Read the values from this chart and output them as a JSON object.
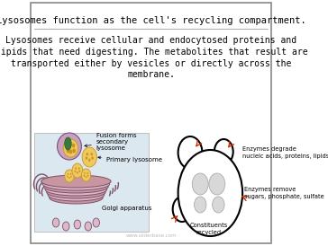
{
  "title": "Lysosomes function as the cell's recycling compartment.",
  "body_text": "Lysosomes receive cellular and endocytosed proteins and\nlipids that need digesting. The metabolites that result are\ntransported either by vesicles or directly across the\nmembrane.",
  "watermark": "www.sliderbase.com",
  "bg_color": "#ffffff",
  "border_color": "#888888",
  "title_fontsize": 7.5,
  "body_fontsize": 7.0,
  "left_box_bg": "#dce8f0",
  "golgi_labels": [
    "Fusion forms\nsecondary\nlysosome",
    "Primary lysosome",
    "Golgi apparatus"
  ],
  "right_labels": [
    "Enzymes degrade\nnucleic acids, proteins, lipids",
    "Enzymes remove\nsugars, phosphate, sulfate",
    "Constituents\nrecycled"
  ],
  "golgi_color": "#c896a0",
  "golgi_dark": "#8b507a",
  "vesicle_yellow": "#f0c860",
  "vesicle_dark": "#c89620"
}
